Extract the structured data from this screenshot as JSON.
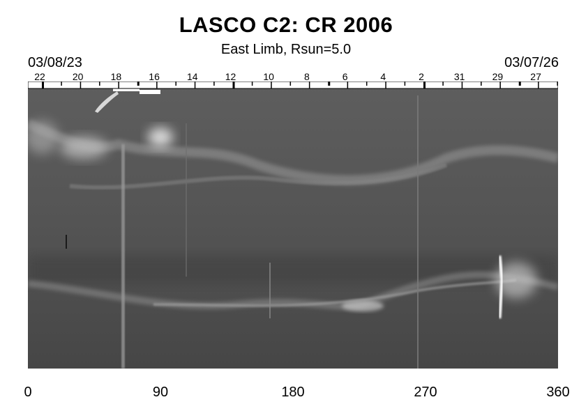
{
  "title": "LASCO C2: CR 2006",
  "subtitle": "East Limb, Rsun=5.0",
  "date_start": "03/08/23",
  "date_end": "03/07/26",
  "day_labels": [
    "22",
    "20",
    "18",
    "16",
    "14",
    "12",
    "10",
    "8",
    "6",
    "4",
    "2",
    "31",
    "29",
    "27"
  ],
  "x_axis": {
    "ticks": [
      "0",
      "90",
      "180",
      "270",
      "360"
    ],
    "range": [
      0,
      360
    ]
  }
}
